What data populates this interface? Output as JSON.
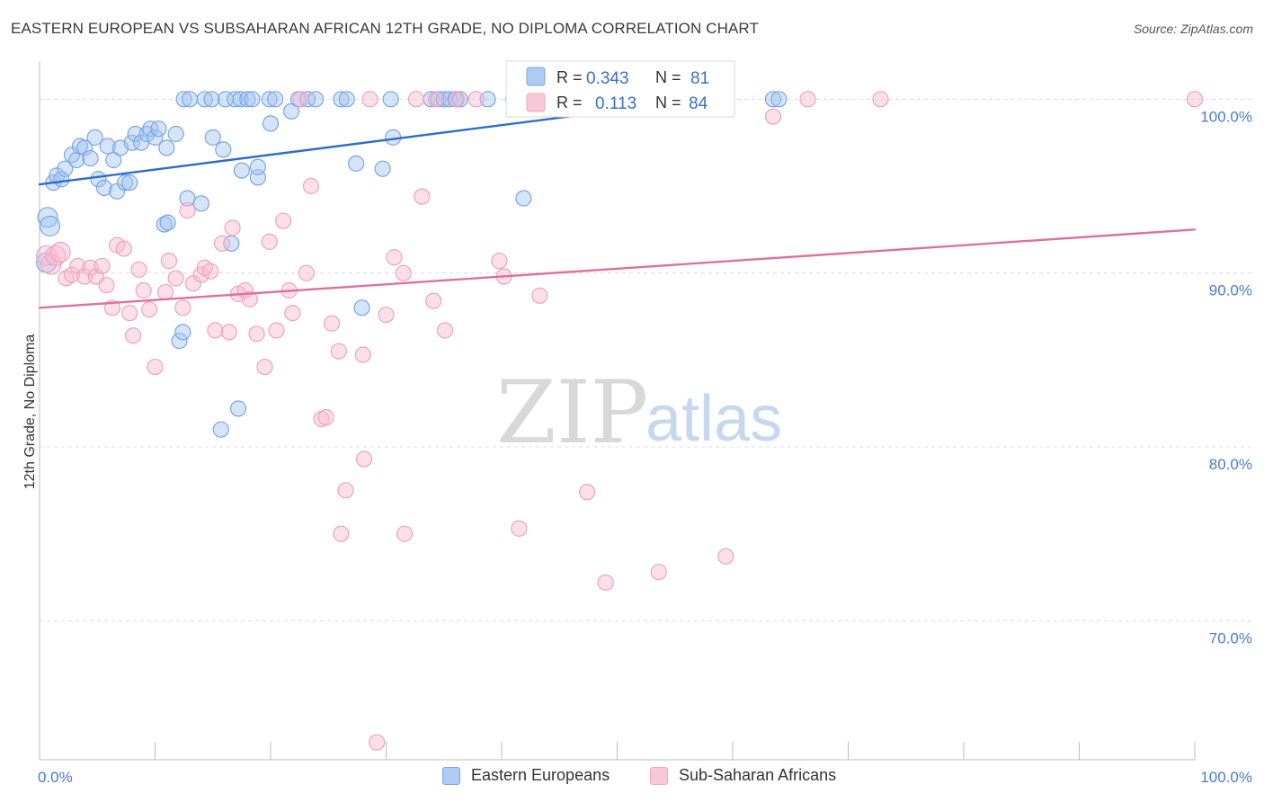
{
  "title": "EASTERN EUROPEAN VS SUBSAHARAN AFRICAN 12TH GRADE, NO DIPLOMA CORRELATION CHART",
  "source": "Source: ZipAtlas.com",
  "watermark": {
    "zip": "ZIP",
    "atlas": "atlas"
  },
  "legend_box": {
    "rows": [
      {
        "r_label": "R =",
        "r_value": "0.343",
        "n_label": "N =",
        "n_value": "81"
      },
      {
        "r_label": "R =",
        "r_value": "0.113",
        "n_label": "N =",
        "n_value": "84"
      }
    ]
  },
  "bottom_legend": {
    "items": [
      {
        "label": "Eastern Europeans"
      },
      {
        "label": "Sub-Saharan Africans"
      }
    ]
  },
  "colors": {
    "blue": "#7aa6e6",
    "blue_line": "#2e6ccc",
    "pink": "#f2a7bf",
    "pink_line": "#e0709a",
    "tick_text": "#4a7cc9"
  },
  "chart_data": {
    "type": "scatter",
    "title": "EASTERN EUROPEAN VS SUBSAHARAN AFRICAN 12TH GRADE, NO DIPLOMA CORRELATION CHART",
    "xlabel": "",
    "ylabel": "12th Grade, No Diploma",
    "xlim": [
      0,
      100
    ],
    "ylim": [
      62,
      102.5
    ],
    "x_tick_labels": [
      "0.0%",
      "100.0%"
    ],
    "y_ticks": [
      70,
      80,
      90,
      100
    ],
    "y_tick_labels": [
      "70.0%",
      "80.0%",
      "90.0%",
      "100.0%"
    ],
    "grid": "horizontal dashed",
    "legend_position": "top-center",
    "series": [
      {
        "name": "Eastern Europeans",
        "color": "#7aa6e6",
        "r": 0.343,
        "n": 81,
        "trend": {
          "x": [
            0,
            57.5
          ],
          "y": [
            95.1,
            100
          ]
        },
        "points": [
          [
            0.6,
            90.6
          ],
          [
            0.7,
            93.2
          ],
          [
            0.9,
            92.7
          ],
          [
            1.2,
            95.2
          ],
          [
            1.5,
            95.6
          ],
          [
            1.9,
            95.4
          ],
          [
            2.2,
            96.0
          ],
          [
            2.8,
            96.8
          ],
          [
            3.2,
            96.5
          ],
          [
            3.5,
            97.3
          ],
          [
            3.9,
            97.2
          ],
          [
            4.4,
            96.6
          ],
          [
            4.8,
            97.8
          ],
          [
            5.1,
            95.4
          ],
          [
            5.6,
            94.9
          ],
          [
            5.9,
            97.3
          ],
          [
            6.4,
            96.5
          ],
          [
            6.7,
            94.7
          ],
          [
            7.0,
            97.2
          ],
          [
            7.4,
            95.2
          ],
          [
            7.8,
            95.2
          ],
          [
            8.0,
            97.5
          ],
          [
            8.3,
            98.0
          ],
          [
            8.8,
            97.5
          ],
          [
            9.3,
            98.0
          ],
          [
            9.6,
            98.3
          ],
          [
            10.0,
            97.8
          ],
          [
            10.3,
            98.3
          ],
          [
            11.0,
            97.2
          ],
          [
            11.8,
            98.0
          ],
          [
            10.8,
            92.8
          ],
          [
            11.1,
            92.9
          ],
          [
            12.1,
            86.1
          ],
          [
            12.4,
            86.6
          ],
          [
            12.8,
            94.3
          ],
          [
            14.0,
            94.0
          ],
          [
            15.0,
            97.8
          ],
          [
            15.9,
            97.1
          ],
          [
            16.6,
            91.7
          ],
          [
            17.2,
            82.2
          ],
          [
            15.7,
            81.0
          ],
          [
            17.5,
            95.9
          ],
          [
            18.9,
            95.5
          ],
          [
            18.9,
            96.1
          ],
          [
            20.0,
            98.6
          ],
          [
            21.8,
            99.3
          ],
          [
            27.4,
            96.3
          ],
          [
            27.9,
            88.0
          ],
          [
            29.7,
            96.0
          ],
          [
            30.6,
            97.8
          ],
          [
            41.9,
            94.3
          ],
          [
            12.5,
            100
          ],
          [
            13.0,
            100
          ],
          [
            14.3,
            100
          ],
          [
            14.9,
            100
          ],
          [
            16.1,
            100
          ],
          [
            16.9,
            100
          ],
          [
            17.4,
            100
          ],
          [
            18.0,
            100
          ],
          [
            18.4,
            100
          ],
          [
            19.9,
            100
          ],
          [
            20.4,
            100
          ],
          [
            22.4,
            100
          ],
          [
            23.2,
            100
          ],
          [
            23.9,
            100
          ],
          [
            26.1,
            100
          ],
          [
            26.6,
            100
          ],
          [
            30.4,
            100
          ],
          [
            33.9,
            100
          ],
          [
            34.5,
            100
          ],
          [
            35.0,
            100
          ],
          [
            35.5,
            100
          ],
          [
            36.0,
            100
          ],
          [
            36.4,
            100
          ],
          [
            38.8,
            100
          ],
          [
            41.0,
            100
          ],
          [
            46.4,
            100
          ],
          [
            55.2,
            100
          ],
          [
            56.3,
            100
          ],
          [
            63.5,
            100
          ],
          [
            64.0,
            100
          ]
        ]
      },
      {
        "name": "Sub-Saharan Africans",
        "color": "#f2a7bf",
        "r": 0.113,
        "n": 84,
        "trend": {
          "x": [
            0,
            100
          ],
          "y": [
            88.0,
            92.5
          ]
        },
        "points": [
          [
            0.6,
            91.0
          ],
          [
            1.0,
            90.5
          ],
          [
            1.4,
            91.0
          ],
          [
            1.8,
            91.2
          ],
          [
            2.3,
            89.7
          ],
          [
            2.8,
            89.9
          ],
          [
            3.3,
            90.4
          ],
          [
            3.9,
            89.8
          ],
          [
            4.4,
            90.3
          ],
          [
            4.9,
            89.8
          ],
          [
            5.4,
            90.4
          ],
          [
            5.8,
            89.3
          ],
          [
            6.3,
            88.0
          ],
          [
            6.7,
            91.6
          ],
          [
            7.3,
            91.4
          ],
          [
            7.8,
            87.7
          ],
          [
            8.1,
            86.4
          ],
          [
            8.6,
            90.2
          ],
          [
            9.0,
            89.0
          ],
          [
            9.5,
            87.9
          ],
          [
            10.0,
            84.6
          ],
          [
            10.9,
            88.9
          ],
          [
            11.2,
            90.7
          ],
          [
            11.8,
            89.7
          ],
          [
            12.4,
            88.0
          ],
          [
            12.8,
            93.6
          ],
          [
            13.3,
            89.4
          ],
          [
            14.0,
            89.9
          ],
          [
            14.3,
            90.3
          ],
          [
            14.8,
            90.1
          ],
          [
            15.2,
            86.7
          ],
          [
            15.8,
            91.7
          ],
          [
            16.4,
            86.6
          ],
          [
            16.7,
            92.6
          ],
          [
            17.2,
            88.8
          ],
          [
            17.8,
            89.0
          ],
          [
            18.2,
            88.5
          ],
          [
            18.8,
            86.5
          ],
          [
            19.5,
            84.6
          ],
          [
            19.9,
            91.8
          ],
          [
            20.5,
            86.7
          ],
          [
            21.1,
            93.0
          ],
          [
            21.6,
            89.0
          ],
          [
            21.9,
            87.7
          ],
          [
            23.1,
            90.0
          ],
          [
            23.5,
            95.0
          ],
          [
            24.4,
            81.6
          ],
          [
            24.8,
            81.7
          ],
          [
            25.3,
            87.1
          ],
          [
            25.9,
            85.5
          ],
          [
            26.1,
            75.0
          ],
          [
            26.5,
            77.5
          ],
          [
            28.0,
            85.3
          ],
          [
            28.1,
            79.3
          ],
          [
            28.6,
            100
          ],
          [
            30.0,
            87.6
          ],
          [
            30.7,
            90.9
          ],
          [
            31.5,
            90.0
          ],
          [
            31.6,
            75.0
          ],
          [
            33.1,
            94.4
          ],
          [
            34.1,
            88.4
          ],
          [
            35.1,
            86.7
          ],
          [
            37.8,
            100
          ],
          [
            39.8,
            90.7
          ],
          [
            40.2,
            89.8
          ],
          [
            41.5,
            75.3
          ],
          [
            43.3,
            88.7
          ],
          [
            47.4,
            77.4
          ],
          [
            49.0,
            72.2
          ],
          [
            53.6,
            72.8
          ],
          [
            59.4,
            73.7
          ],
          [
            29.2,
            63.0
          ],
          [
            22.6,
            100
          ],
          [
            32.6,
            100
          ],
          [
            34.3,
            100
          ],
          [
            36.1,
            100
          ],
          [
            47.3,
            100
          ],
          [
            48.3,
            100
          ],
          [
            48.7,
            100
          ],
          [
            55.6,
            100
          ],
          [
            63.5,
            99.0
          ],
          [
            66.5,
            100
          ],
          [
            72.8,
            100
          ],
          [
            100,
            100
          ]
        ]
      }
    ]
  }
}
